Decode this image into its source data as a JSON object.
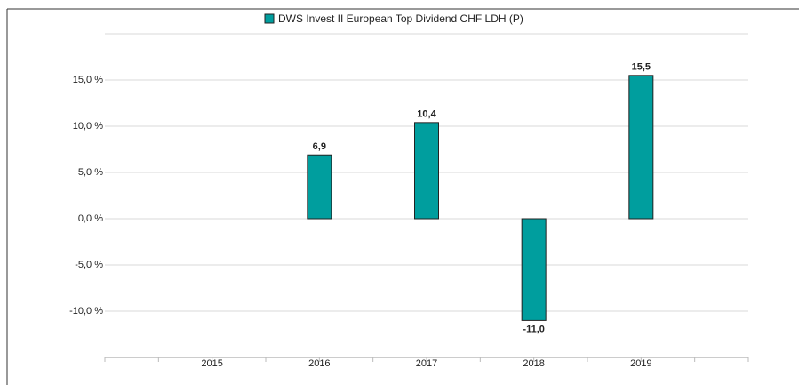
{
  "chart_data": {
    "type": "bar",
    "series": [
      {
        "name": "DWS Invest II European Top Dividend  CHF LDH (P)",
        "color": "#009e9e",
        "values": [
          null,
          6.9,
          10.4,
          -11.0,
          15.5
        ],
        "value_labels": [
          null,
          "6,9",
          "10,4",
          "-11,0",
          "15,5"
        ]
      }
    ],
    "categories": [
      "2015",
      "2016",
      "2017",
      "2018",
      "2019"
    ],
    "ylim": [
      -15,
      20
    ],
    "yticks": [
      {
        "value": -10,
        "label": "-10,0 %"
      },
      {
        "value": -5,
        "label": "-5,0 %"
      },
      {
        "value": 0,
        "label": "0,0 %"
      },
      {
        "value": 5,
        "label": "5,0 %"
      },
      {
        "value": 10,
        "label": "10,0 %"
      },
      {
        "value": 15,
        "label": "15,0 %"
      }
    ],
    "grid": true
  }
}
